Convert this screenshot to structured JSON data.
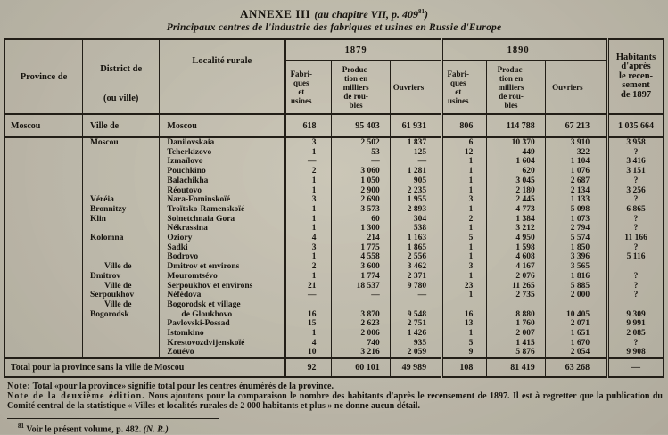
{
  "page": {
    "title_main": "ANNEXE III",
    "title_ref_prefix": "(au chapitre VII, p. 409",
    "title_ref_sup": "81",
    "title_ref_suffix": ")",
    "subtitle": "Principaux centres de l'industrie des fabriques et usines en Russie d'Europe"
  },
  "table": {
    "headers": {
      "province": "Province de",
      "district_line1": "District de",
      "district_line2": "(ou ville)",
      "locality": "Localité rurale",
      "year1": "1879",
      "year2": "1890",
      "fabriques": "Fabri-\nques\net\nusines",
      "production": "Produc-\ntion en\nmilliers\nde rou-\nbles",
      "ouvriers": "Ouvriers",
      "habitants": "Habitants\nd'après\nle recen-\nsement\nde 1897"
    },
    "moscow_row": {
      "province": "Moscou",
      "district": "Ville de",
      "locality": "Moscou",
      "values": [
        "618",
        "95 403",
        "61 931",
        "806",
        "114 788",
        "67 213",
        "1 035 664"
      ]
    },
    "rows": [
      {
        "d": "Moscou",
        "di": 0,
        "l": "Danilovskaia",
        "li": 0,
        "v": [
          "3",
          "2 502",
          "1 837",
          "6",
          "10 370",
          "3 910",
          "3 958"
        ]
      },
      {
        "d": "",
        "di": 0,
        "l": "Tcherkizovo",
        "li": 0,
        "v": [
          "1",
          "53",
          "125",
          "12",
          "449",
          "322",
          "?"
        ]
      },
      {
        "d": "",
        "di": 0,
        "l": "Izmaïlovo",
        "li": 0,
        "v": [
          "—",
          "—",
          "—",
          "1",
          "1 604",
          "1 104",
          "3 416"
        ]
      },
      {
        "d": "",
        "di": 0,
        "l": "Pouchkino",
        "li": 0,
        "v": [
          "2",
          "3 060",
          "1 281",
          "1",
          "620",
          "1 076",
          "3 151"
        ]
      },
      {
        "d": "",
        "di": 0,
        "l": "Balachikha",
        "li": 0,
        "v": [
          "1",
          "1 050",
          "905",
          "1",
          "3 045",
          "2 687",
          "?"
        ]
      },
      {
        "d": "",
        "di": 0,
        "l": "Réoutovo",
        "li": 0,
        "v": [
          "1",
          "2 900",
          "2 235",
          "1",
          "2 180",
          "2 134",
          "3 256"
        ]
      },
      {
        "d": "Véréia",
        "di": 0,
        "l": "Nara-Fominskoïé",
        "li": 0,
        "v": [
          "3",
          "2 690",
          "1 955",
          "3",
          "2 445",
          "1 133",
          "?"
        ]
      },
      {
        "d": "Bronnitzy",
        "di": 0,
        "l": "Troïtsko-Ramenskoïé",
        "li": 0,
        "v": [
          "1",
          "3 573",
          "2 893",
          "1",
          "4 773",
          "5 098",
          "6 865"
        ]
      },
      {
        "d": "Klin",
        "di": 0,
        "l": "Solnetchnaia Gora",
        "li": 0,
        "v": [
          "1",
          "60",
          "304",
          "2",
          "1 384",
          "1 073",
          "?"
        ]
      },
      {
        "d": "",
        "di": 0,
        "l": "Nékrassina",
        "li": 0,
        "v": [
          "1",
          "1 300",
          "538",
          "1",
          "3 212",
          "2 794",
          "?"
        ]
      },
      {
        "d": "Kolomna",
        "di": 0,
        "l": "Oziory",
        "li": 0,
        "v": [
          "4",
          "214",
          "1 163",
          "5",
          "4 950",
          "5 574",
          "11 166"
        ]
      },
      {
        "d": "",
        "di": 0,
        "l": "Sadki",
        "li": 0,
        "v": [
          "3",
          "1 775",
          "1 865",
          "1",
          "1 598",
          "1 850",
          "?"
        ]
      },
      {
        "d": "",
        "di": 0,
        "l": "Bodrovo",
        "li": 0,
        "v": [
          "1",
          "4 558",
          "2 556",
          "1",
          "4 608",
          "3 396",
          "5 116"
        ]
      },
      {
        "d": "Ville de",
        "di": 1,
        "l": "Dmitrov et environs",
        "li": 0,
        "v": [
          "2",
          "3 600",
          "3 462",
          "3",
          "4 167",
          "3 565",
          ""
        ]
      },
      {
        "d": "Dmitrov",
        "di": 0,
        "l": "Mouromtsévo",
        "li": 0,
        "v": [
          "1",
          "1 774",
          "2 371",
          "1",
          "2 076",
          "1 816",
          "?"
        ]
      },
      {
        "d": "Ville de",
        "di": 1,
        "l": "Serpoukhov et environs",
        "li": 0,
        "v": [
          "21",
          "18 537",
          "9 780",
          "23",
          "11 265",
          "5 885",
          "?"
        ]
      },
      {
        "d": "Serpoukhov",
        "di": 0,
        "l": "Néfédova",
        "li": 0,
        "v": [
          "—",
          "—",
          "—",
          "1",
          "2 735",
          "2 000",
          "?"
        ]
      },
      {
        "d": "Ville de",
        "di": 1,
        "l": "Bogorodsk et village",
        "li": 0,
        "v": [
          "",
          "",
          "",
          "",
          "",
          "",
          ""
        ]
      },
      {
        "d": "Bogorodsk",
        "di": 0,
        "l": "de Gloukhovo",
        "li": 1,
        "v": [
          "16",
          "3 870",
          "9 548",
          "16",
          "8 880",
          "10 405",
          "9 309"
        ]
      },
      {
        "d": "",
        "di": 0,
        "l": "Pavlovski-Possad",
        "li": 0,
        "v": [
          "15",
          "2 623",
          "2 751",
          "13",
          "1 760",
          "2 071",
          "9 991"
        ]
      },
      {
        "d": "",
        "di": 0,
        "l": "Istomkino",
        "li": 0,
        "v": [
          "1",
          "2 006",
          "1 426",
          "1",
          "2 007",
          "1 651",
          "2 085"
        ]
      },
      {
        "d": "",
        "di": 0,
        "l": "Krestovozdvijenskoïé",
        "li": 0,
        "v": [
          "4",
          "740",
          "935",
          "5",
          "1 415",
          "1 670",
          "?"
        ]
      },
      {
        "d": "",
        "di": 0,
        "l": "Zouévo",
        "li": 0,
        "v": [
          "10",
          "3 216",
          "2 059",
          "9",
          "5 876",
          "2 054",
          "9 908"
        ]
      }
    ],
    "total_row": {
      "label": "Total pour la province sans la ville de Moscou",
      "values": [
        "92",
        "60 101",
        "49 989",
        "108",
        "81 419",
        "63 268",
        "—"
      ]
    }
  },
  "notes": {
    "line1_lead": "Note:",
    "line1_rest": " Total «pour la province»  signifie total pour les centres énumérés de la province.",
    "line2_lead": "Note de la deuxième édition.",
    "line2_rest": " Nous ajoutons pour la comparaison le nombre des habitants d'après le recensement de 1897. Il est à regretter que la publication du Comité central de la statistique « Villes et localités rurales de 2 000 habitants et plus »  ne donne aucun détail."
  },
  "footnote": {
    "mark": "81",
    "text": " Voir le présent volume, p. 482. ",
    "nr": "(N. R.)"
  }
}
